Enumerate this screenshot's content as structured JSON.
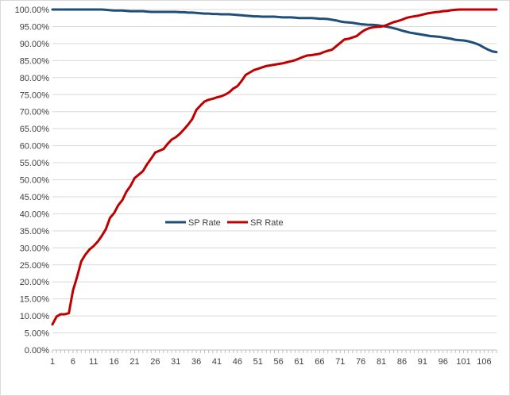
{
  "chart_data": {
    "type": "line",
    "title": "",
    "xlabel": "",
    "ylabel": "",
    "ylim": [
      0,
      1
    ],
    "grid": true,
    "legend_position": "center-left",
    "x_tick_labels": [
      "1",
      "6",
      "11",
      "16",
      "21",
      "26",
      "31",
      "36",
      "41",
      "46",
      "51",
      "56",
      "61",
      "66",
      "71",
      "76",
      "81",
      "86",
      "91",
      "96",
      "101",
      "106"
    ],
    "y_tick_labels": [
      "0.00%",
      "5.00%",
      "10.00%",
      "15.00%",
      "20.00%",
      "25.00%",
      "30.00%",
      "35.00%",
      "40.00%",
      "45.00%",
      "50.00%",
      "55.00%",
      "60.00%",
      "65.00%",
      "70.00%",
      "75.00%",
      "80.00%",
      "85.00%",
      "90.00%",
      "95.00%",
      "100.00%"
    ],
    "x": [
      1,
      2,
      3,
      4,
      5,
      6,
      7,
      8,
      9,
      10,
      11,
      12,
      13,
      14,
      15,
      16,
      17,
      18,
      19,
      20,
      21,
      22,
      23,
      24,
      25,
      26,
      27,
      28,
      29,
      30,
      31,
      32,
      33,
      34,
      35,
      36,
      37,
      38,
      39,
      40,
      41,
      42,
      43,
      44,
      45,
      46,
      47,
      48,
      49,
      50,
      51,
      52,
      53,
      54,
      55,
      56,
      57,
      58,
      59,
      60,
      61,
      62,
      63,
      64,
      65,
      66,
      67,
      68,
      69,
      70,
      71,
      72,
      73,
      74,
      75,
      76,
      77,
      78,
      79,
      80,
      81,
      82,
      83,
      84,
      85,
      86,
      87,
      88,
      89,
      90,
      91,
      92,
      93,
      94,
      95,
      96,
      97,
      98,
      99,
      100,
      101,
      102,
      103,
      104,
      105,
      106,
      107,
      108,
      109
    ],
    "series": [
      {
        "name": "SP Rate",
        "color": "#1f4e79",
        "values": [
          1.0,
          1.0,
          1.0,
          1.0,
          1.0,
          1.0,
          1.0,
          1.0,
          1.0,
          1.0,
          1.0,
          1.0,
          1.0,
          0.999,
          0.998,
          0.997,
          0.997,
          0.997,
          0.996,
          0.995,
          0.995,
          0.995,
          0.995,
          0.994,
          0.993,
          0.993,
          0.993,
          0.993,
          0.993,
          0.993,
          0.993,
          0.992,
          0.992,
          0.991,
          0.991,
          0.99,
          0.989,
          0.988,
          0.988,
          0.987,
          0.987,
          0.986,
          0.986,
          0.986,
          0.985,
          0.984,
          0.983,
          0.982,
          0.981,
          0.98,
          0.98,
          0.979,
          0.979,
          0.979,
          0.979,
          0.978,
          0.977,
          0.977,
          0.977,
          0.976,
          0.975,
          0.975,
          0.975,
          0.975,
          0.974,
          0.973,
          0.973,
          0.972,
          0.97,
          0.968,
          0.965,
          0.963,
          0.962,
          0.961,
          0.959,
          0.957,
          0.956,
          0.955,
          0.955,
          0.954,
          0.952,
          0.95,
          0.948,
          0.945,
          0.942,
          0.938,
          0.935,
          0.932,
          0.93,
          0.928,
          0.926,
          0.924,
          0.922,
          0.921,
          0.92,
          0.918,
          0.916,
          0.914,
          0.911,
          0.91,
          0.909,
          0.907,
          0.904,
          0.9,
          0.895,
          0.888,
          0.882,
          0.877,
          0.875
        ]
      },
      {
        "name": "SR Rate",
        "color": "#c00000",
        "values": [
          0.075,
          0.098,
          0.105,
          0.105,
          0.108,
          0.175,
          0.215,
          0.26,
          0.28,
          0.295,
          0.305,
          0.318,
          0.335,
          0.355,
          0.388,
          0.402,
          0.425,
          0.44,
          0.465,
          0.482,
          0.505,
          0.515,
          0.525,
          0.545,
          0.562,
          0.58,
          0.585,
          0.59,
          0.605,
          0.618,
          0.625,
          0.635,
          0.648,
          0.662,
          0.678,
          0.705,
          0.718,
          0.73,
          0.735,
          0.738,
          0.742,
          0.745,
          0.75,
          0.757,
          0.768,
          0.775,
          0.79,
          0.808,
          0.815,
          0.822,
          0.826,
          0.83,
          0.834,
          0.836,
          0.838,
          0.84,
          0.842,
          0.845,
          0.848,
          0.851,
          0.856,
          0.861,
          0.865,
          0.866,
          0.868,
          0.87,
          0.875,
          0.879,
          0.882,
          0.892,
          0.902,
          0.912,
          0.914,
          0.918,
          0.922,
          0.932,
          0.94,
          0.945,
          0.948,
          0.949,
          0.95,
          0.953,
          0.958,
          0.963,
          0.966,
          0.97,
          0.975,
          0.978,
          0.98,
          0.982,
          0.985,
          0.988,
          0.99,
          0.992,
          0.993,
          0.995,
          0.996,
          0.998,
          0.999,
          1.0,
          1.0,
          1.0,
          1.0,
          1.0,
          1.0,
          1.0,
          1.0,
          1.0,
          1.0
        ]
      }
    ]
  }
}
